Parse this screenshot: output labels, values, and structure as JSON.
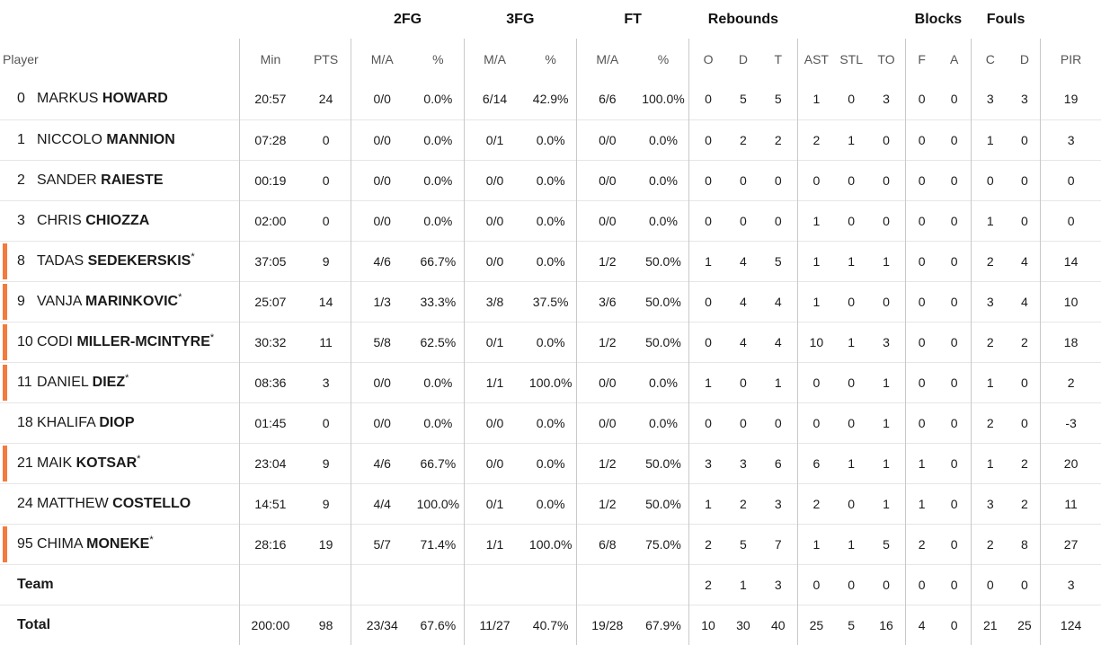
{
  "groups": {
    "fg2": "2FG",
    "fg3": "3FG",
    "ft": "FT",
    "reb": "Rebounds",
    "blk": "Blocks",
    "fouls": "Fouls"
  },
  "columns": {
    "player": "Player",
    "min": "Min",
    "pts": "PTS",
    "fg2_ma": "M/A",
    "fg2_pct": "%",
    "fg3_ma": "M/A",
    "fg3_pct": "%",
    "ft_ma": "M/A",
    "ft_pct": "%",
    "reb_o": "O",
    "reb_d": "D",
    "reb_t": "T",
    "ast": "AST",
    "stl": "STL",
    "to": "TO",
    "blk_f": "F",
    "blk_a": "A",
    "fouls_c": "C",
    "fouls_d": "D",
    "pir": "PIR"
  },
  "players": [
    {
      "num": "0",
      "first": "MARKUS",
      "last": "HOWARD",
      "starter": false,
      "min": "20:57",
      "pts": "24",
      "fg2_ma": "0/0",
      "fg2_pct": "0.0%",
      "fg3_ma": "6/14",
      "fg3_pct": "42.9%",
      "ft_ma": "6/6",
      "ft_pct": "100.0%",
      "reb_o": "0",
      "reb_d": "5",
      "reb_t": "5",
      "ast": "1",
      "stl": "0",
      "to": "3",
      "blk_f": "0",
      "blk_a": "0",
      "fouls_c": "3",
      "fouls_d": "3",
      "pir": "19"
    },
    {
      "num": "1",
      "first": "NICCOLO",
      "last": "MANNION",
      "starter": false,
      "min": "07:28",
      "pts": "0",
      "fg2_ma": "0/0",
      "fg2_pct": "0.0%",
      "fg3_ma": "0/1",
      "fg3_pct": "0.0%",
      "ft_ma": "0/0",
      "ft_pct": "0.0%",
      "reb_o": "0",
      "reb_d": "2",
      "reb_t": "2",
      "ast": "2",
      "stl": "1",
      "to": "0",
      "blk_f": "0",
      "blk_a": "0",
      "fouls_c": "1",
      "fouls_d": "0",
      "pir": "3"
    },
    {
      "num": "2",
      "first": "SANDER",
      "last": "RAIESTE",
      "starter": false,
      "min": "00:19",
      "pts": "0",
      "fg2_ma": "0/0",
      "fg2_pct": "0.0%",
      "fg3_ma": "0/0",
      "fg3_pct": "0.0%",
      "ft_ma": "0/0",
      "ft_pct": "0.0%",
      "reb_o": "0",
      "reb_d": "0",
      "reb_t": "0",
      "ast": "0",
      "stl": "0",
      "to": "0",
      "blk_f": "0",
      "blk_a": "0",
      "fouls_c": "0",
      "fouls_d": "0",
      "pir": "0"
    },
    {
      "num": "3",
      "first": "CHRIS",
      "last": "CHIOZZA",
      "starter": false,
      "min": "02:00",
      "pts": "0",
      "fg2_ma": "0/0",
      "fg2_pct": "0.0%",
      "fg3_ma": "0/0",
      "fg3_pct": "0.0%",
      "ft_ma": "0/0",
      "ft_pct": "0.0%",
      "reb_o": "0",
      "reb_d": "0",
      "reb_t": "0",
      "ast": "1",
      "stl": "0",
      "to": "0",
      "blk_f": "0",
      "blk_a": "0",
      "fouls_c": "1",
      "fouls_d": "0",
      "pir": "0"
    },
    {
      "num": "8",
      "first": "TADAS",
      "last": "SEDEKERSKIS",
      "starter": true,
      "min": "37:05",
      "pts": "9",
      "fg2_ma": "4/6",
      "fg2_pct": "66.7%",
      "fg3_ma": "0/0",
      "fg3_pct": "0.0%",
      "ft_ma": "1/2",
      "ft_pct": "50.0%",
      "reb_o": "1",
      "reb_d": "4",
      "reb_t": "5",
      "ast": "1",
      "stl": "1",
      "to": "1",
      "blk_f": "0",
      "blk_a": "0",
      "fouls_c": "2",
      "fouls_d": "4",
      "pir": "14"
    },
    {
      "num": "9",
      "first": "VANJA",
      "last": "MARINKOVIC",
      "starter": true,
      "min": "25:07",
      "pts": "14",
      "fg2_ma": "1/3",
      "fg2_pct": "33.3%",
      "fg3_ma": "3/8",
      "fg3_pct": "37.5%",
      "ft_ma": "3/6",
      "ft_pct": "50.0%",
      "reb_o": "0",
      "reb_d": "4",
      "reb_t": "4",
      "ast": "1",
      "stl": "0",
      "to": "0",
      "blk_f": "0",
      "blk_a": "0",
      "fouls_c": "3",
      "fouls_d": "4",
      "pir": "10"
    },
    {
      "num": "10",
      "first": "CODI",
      "last": "MILLER-MCINTYRE",
      "starter": true,
      "min": "30:32",
      "pts": "11",
      "fg2_ma": "5/8",
      "fg2_pct": "62.5%",
      "fg3_ma": "0/1",
      "fg3_pct": "0.0%",
      "ft_ma": "1/2",
      "ft_pct": "50.0%",
      "reb_o": "0",
      "reb_d": "4",
      "reb_t": "4",
      "ast": "10",
      "stl": "1",
      "to": "3",
      "blk_f": "0",
      "blk_a": "0",
      "fouls_c": "2",
      "fouls_d": "2",
      "pir": "18"
    },
    {
      "num": "11",
      "first": "DANIEL",
      "last": "DIEZ",
      "starter": true,
      "min": "08:36",
      "pts": "3",
      "fg2_ma": "0/0",
      "fg2_pct": "0.0%",
      "fg3_ma": "1/1",
      "fg3_pct": "100.0%",
      "ft_ma": "0/0",
      "ft_pct": "0.0%",
      "reb_o": "1",
      "reb_d": "0",
      "reb_t": "1",
      "ast": "0",
      "stl": "0",
      "to": "1",
      "blk_f": "0",
      "blk_a": "0",
      "fouls_c": "1",
      "fouls_d": "0",
      "pir": "2"
    },
    {
      "num": "18",
      "first": "KHALIFA",
      "last": "DIOP",
      "starter": false,
      "min": "01:45",
      "pts": "0",
      "fg2_ma": "0/0",
      "fg2_pct": "0.0%",
      "fg3_ma": "0/0",
      "fg3_pct": "0.0%",
      "ft_ma": "0/0",
      "ft_pct": "0.0%",
      "reb_o": "0",
      "reb_d": "0",
      "reb_t": "0",
      "ast": "0",
      "stl": "0",
      "to": "1",
      "blk_f": "0",
      "blk_a": "0",
      "fouls_c": "2",
      "fouls_d": "0",
      "pir": "-3"
    },
    {
      "num": "21",
      "first": "MAIK",
      "last": "KOTSAR",
      "starter": true,
      "min": "23:04",
      "pts": "9",
      "fg2_ma": "4/6",
      "fg2_pct": "66.7%",
      "fg3_ma": "0/0",
      "fg3_pct": "0.0%",
      "ft_ma": "1/2",
      "ft_pct": "50.0%",
      "reb_o": "3",
      "reb_d": "3",
      "reb_t": "6",
      "ast": "6",
      "stl": "1",
      "to": "1",
      "blk_f": "1",
      "blk_a": "0",
      "fouls_c": "1",
      "fouls_d": "2",
      "pir": "20"
    },
    {
      "num": "24",
      "first": "MATTHEW",
      "last": "COSTELLO",
      "starter": false,
      "min": "14:51",
      "pts": "9",
      "fg2_ma": "4/4",
      "fg2_pct": "100.0%",
      "fg3_ma": "0/1",
      "fg3_pct": "0.0%",
      "ft_ma": "1/2",
      "ft_pct": "50.0%",
      "reb_o": "1",
      "reb_d": "2",
      "reb_t": "3",
      "ast": "2",
      "stl": "0",
      "to": "1",
      "blk_f": "1",
      "blk_a": "0",
      "fouls_c": "3",
      "fouls_d": "2",
      "pir": "11"
    },
    {
      "num": "95",
      "first": "CHIMA",
      "last": "MONEKE",
      "starter": true,
      "min": "28:16",
      "pts": "19",
      "fg2_ma": "5/7",
      "fg2_pct": "71.4%",
      "fg3_ma": "1/1",
      "fg3_pct": "100.0%",
      "ft_ma": "6/8",
      "ft_pct": "75.0%",
      "reb_o": "2",
      "reb_d": "5",
      "reb_t": "7",
      "ast": "1",
      "stl": "1",
      "to": "5",
      "blk_f": "2",
      "blk_a": "0",
      "fouls_c": "2",
      "fouls_d": "8",
      "pir": "27"
    }
  ],
  "team": {
    "label": "Team",
    "reb_o": "2",
    "reb_d": "1",
    "reb_t": "3",
    "ast": "0",
    "stl": "0",
    "to": "0",
    "blk_f": "0",
    "blk_a": "0",
    "fouls_c": "0",
    "fouls_d": "0",
    "pir": "3"
  },
  "total": {
    "label": "Total",
    "min": "200:00",
    "pts": "98",
    "fg2_ma": "23/34",
    "fg2_pct": "67.6%",
    "fg3_ma": "11/27",
    "fg3_pct": "40.7%",
    "ft_ma": "19/28",
    "ft_pct": "67.9%",
    "reb_o": "10",
    "reb_d": "30",
    "reb_t": "40",
    "ast": "25",
    "stl": "5",
    "to": "16",
    "blk_f": "4",
    "blk_a": "0",
    "fouls_c": "21",
    "fouls_d": "25",
    "pir": "124"
  },
  "starter_marker": "*",
  "colors": {
    "starter_bar": "#f47b3c",
    "divider": "#c9c9c9",
    "row_line": "#e6e6e6"
  }
}
